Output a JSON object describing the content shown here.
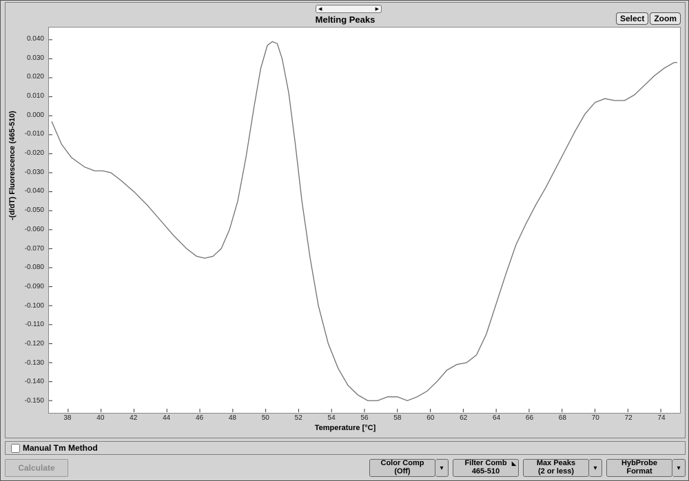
{
  "chart": {
    "title": "Melting Peaks",
    "type": "line",
    "xlabel": "Temperature [°C]",
    "ylabel": "-(d/dT) Fluorescence (465-510)",
    "background_color": "#ffffff",
    "line_color": "#707070",
    "line_width": 1.3,
    "xlim": [
      37,
      75
    ],
    "ylim": [
      -0.155,
      0.045
    ],
    "xtick_step": 2,
    "xtick_start": 38,
    "ytick_step": 0.01,
    "ytick_start": -0.15,
    "ytick_labels": [
      "-0.150",
      "-0.140",
      "-0.130",
      "-0.120",
      "-0.110",
      "-0.100",
      "-0.090",
      "-0.080",
      "-0.070",
      "-0.060",
      "-0.050",
      "-0.040",
      "-0.030",
      "-0.020",
      "-0.010",
      "0.000",
      "0.010",
      "0.020",
      "0.030",
      "0.040"
    ],
    "xtick_labels": [
      "38",
      "40",
      "42",
      "44",
      "46",
      "48",
      "50",
      "52",
      "54",
      "56",
      "58",
      "60",
      "62",
      "64",
      "66",
      "68",
      "70",
      "72",
      "74"
    ],
    "tick_fontsize": 10,
    "label_fontsize": 11,
    "points": [
      [
        37.0,
        -0.003
      ],
      [
        37.6,
        -0.015
      ],
      [
        38.2,
        -0.022
      ],
      [
        39.0,
        -0.027
      ],
      [
        39.6,
        -0.029
      ],
      [
        40.1,
        -0.029
      ],
      [
        40.6,
        -0.03
      ],
      [
        41.2,
        -0.034
      ],
      [
        42.0,
        -0.04
      ],
      [
        42.8,
        -0.047
      ],
      [
        43.6,
        -0.055
      ],
      [
        44.4,
        -0.063
      ],
      [
        45.2,
        -0.07
      ],
      [
        45.8,
        -0.074
      ],
      [
        46.3,
        -0.075
      ],
      [
        46.8,
        -0.074
      ],
      [
        47.3,
        -0.07
      ],
      [
        47.8,
        -0.06
      ],
      [
        48.3,
        -0.045
      ],
      [
        48.8,
        -0.022
      ],
      [
        49.3,
        0.005
      ],
      [
        49.7,
        0.025
      ],
      [
        50.1,
        0.037
      ],
      [
        50.4,
        0.039
      ],
      [
        50.7,
        0.038
      ],
      [
        51.0,
        0.03
      ],
      [
        51.4,
        0.012
      ],
      [
        51.8,
        -0.015
      ],
      [
        52.2,
        -0.045
      ],
      [
        52.7,
        -0.075
      ],
      [
        53.2,
        -0.1
      ],
      [
        53.8,
        -0.12
      ],
      [
        54.4,
        -0.133
      ],
      [
        55.0,
        -0.142
      ],
      [
        55.6,
        -0.147
      ],
      [
        56.2,
        -0.15
      ],
      [
        56.8,
        -0.15
      ],
      [
        57.4,
        -0.148
      ],
      [
        58.0,
        -0.148
      ],
      [
        58.6,
        -0.15
      ],
      [
        59.2,
        -0.148
      ],
      [
        59.8,
        -0.145
      ],
      [
        60.4,
        -0.14
      ],
      [
        61.0,
        -0.134
      ],
      [
        61.6,
        -0.131
      ],
      [
        62.2,
        -0.13
      ],
      [
        62.8,
        -0.126
      ],
      [
        63.4,
        -0.115
      ],
      [
        64.0,
        -0.099
      ],
      [
        64.6,
        -0.083
      ],
      [
        65.2,
        -0.068
      ],
      [
        65.8,
        -0.057
      ],
      [
        66.4,
        -0.047
      ],
      [
        67.0,
        -0.038
      ],
      [
        67.6,
        -0.028
      ],
      [
        68.2,
        -0.018
      ],
      [
        68.8,
        -0.008
      ],
      [
        69.4,
        0.001
      ],
      [
        70.0,
        0.007
      ],
      [
        70.6,
        0.009
      ],
      [
        71.2,
        0.008
      ],
      [
        71.8,
        0.008
      ],
      [
        72.4,
        0.011
      ],
      [
        73.0,
        0.016
      ],
      [
        73.6,
        0.021
      ],
      [
        74.2,
        0.025
      ],
      [
        74.8,
        0.028
      ],
      [
        75.0,
        0.028
      ]
    ]
  },
  "buttons": {
    "select": "Select",
    "zoom": "Zoom",
    "manual_tm": "Manual Tm Method",
    "calculate": "Calculate",
    "color_comp_l1": "Color Comp",
    "color_comp_l2": "(Off)",
    "filter_l1": "Filter Comb",
    "filter_l2": "465-510",
    "max_peaks_l1": "Max Peaks",
    "max_peaks_l2": "(2 or less)",
    "hybprobe_l1": "HybProbe",
    "hybprobe_l2": "Format"
  },
  "top_dropdown_value": " ",
  "panel_bg": "#d3d3d3",
  "plot_border": "#888888"
}
